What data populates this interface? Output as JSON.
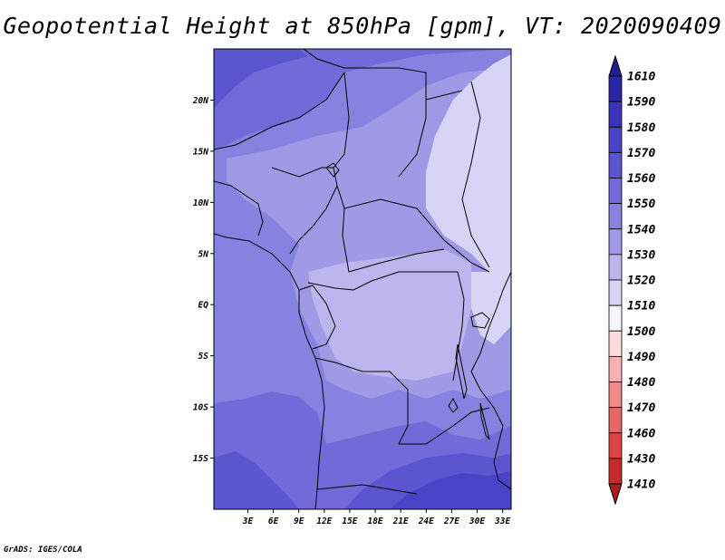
{
  "title": "Geopotential Height at 850hPa [gpm], VT: 2020090409",
  "credit": "GrADS: IGES/COLA",
  "map": {
    "projection": "latlon",
    "lon_range": [
      -1,
      34
    ],
    "lat_range": [
      -20,
      25
    ],
    "lat_ticks": [
      {
        "value": 20,
        "label": "20N"
      },
      {
        "value": 15,
        "label": "15N"
      },
      {
        "value": 10,
        "label": "10N"
      },
      {
        "value": 5,
        "label": "5N"
      },
      {
        "value": 0,
        "label": "EQ"
      },
      {
        "value": -5,
        "label": "5S"
      },
      {
        "value": -10,
        "label": "10S"
      },
      {
        "value": -15,
        "label": "15S"
      }
    ],
    "lon_ticks": [
      {
        "value": 3,
        "label": "3E"
      },
      {
        "value": 6,
        "label": "6E"
      },
      {
        "value": 9,
        "label": "9E"
      },
      {
        "value": 12,
        "label": "12E"
      },
      {
        "value": 15,
        "label": "15E"
      },
      {
        "value": 18,
        "label": "18E"
      },
      {
        "value": 21,
        "label": "21E"
      },
      {
        "value": 24,
        "label": "24E"
      },
      {
        "value": 27,
        "label": "27E"
      },
      {
        "value": 30,
        "label": "30E"
      },
      {
        "value": 33,
        "label": "33E"
      }
    ]
  },
  "colorbar": {
    "labels": [
      "1610",
      "1590",
      "1580",
      "1570",
      "1560",
      "1550",
      "1540",
      "1530",
      "1520",
      "1510",
      "1500",
      "1490",
      "1480",
      "1470",
      "1460",
      "1430",
      "1410"
    ],
    "colors": [
      "#221c8e",
      "#2b24a6",
      "#3a32b8",
      "#4a43c6",
      "#5c55d0",
      "#716ad8",
      "#8781df",
      "#a09ae6",
      "#bbb7ee",
      "#d7d5f5",
      "#f5f5fb",
      "#fcdcdc",
      "#f6b2b2",
      "#ee8a8a",
      "#e66565",
      "#d94343",
      "#c42a2a",
      "#a81d1d"
    ]
  }
}
